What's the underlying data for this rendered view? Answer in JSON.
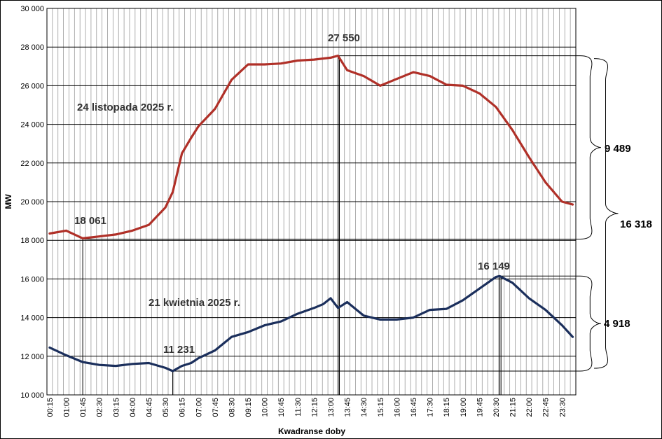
{
  "chart_data": {
    "type": "line",
    "title": "",
    "xlabel": "Kwadranse doby",
    "ylabel": "MW",
    "ylim": [
      10000,
      30000
    ],
    "yticks": [
      10000,
      12000,
      14000,
      16000,
      18000,
      20000,
      22000,
      24000,
      26000,
      28000,
      30000
    ],
    "ytick_labels": [
      "10 000",
      "12 000",
      "14 000",
      "16 000",
      "18 000",
      "20 000",
      "22 000",
      "24 000",
      "26 000",
      "28 000",
      "30 000"
    ],
    "xtick_labels": [
      "00:15",
      "01:00",
      "01:45",
      "02:30",
      "03:15",
      "04:00",
      "04:45",
      "05:30",
      "06:15",
      "07:00",
      "07:45",
      "08:30",
      "09:15",
      "10:00",
      "10:45",
      "11:30",
      "12:15",
      "13:00",
      "13:45",
      "14:30",
      "15:15",
      "16:00",
      "16:45",
      "17:30",
      "18:15",
      "19:00",
      "19:45",
      "20:30",
      "21:15",
      "22:00",
      "22:45",
      "23:30"
    ],
    "grid": true,
    "series": [
      {
        "name": "24 listopada 2025 r.",
        "color": "#b03028",
        "x": [
          "00:15",
          "01:00",
          "01:45",
          "02:30",
          "03:15",
          "04:00",
          "04:45",
          "05:30",
          "05:50",
          "06:15",
          "06:40",
          "07:00",
          "07:45",
          "08:30",
          "09:15",
          "10:00",
          "10:45",
          "11:30",
          "12:15",
          "13:00",
          "13:20",
          "13:45",
          "14:30",
          "15:15",
          "16:00",
          "16:45",
          "17:30",
          "18:15",
          "19:00",
          "19:45",
          "20:30",
          "21:15",
          "22:00",
          "22:45",
          "23:30",
          "23:59"
        ],
        "values": [
          18350,
          18500,
          18100,
          18200,
          18300,
          18500,
          18800,
          19700,
          20500,
          22500,
          23300,
          23900,
          24800,
          26300,
          27100,
          27100,
          27150,
          27300,
          27350,
          27450,
          27550,
          26800,
          26500,
          26000,
          26350,
          26700,
          26500,
          26050,
          26000,
          25600,
          24900,
          23700,
          22300,
          21000,
          20000,
          19850
        ]
      },
      {
        "name": "21 kwietnia 2025 r.",
        "color": "#1b2f5c",
        "x": [
          "00:15",
          "01:00",
          "01:45",
          "02:30",
          "03:15",
          "04:00",
          "04:45",
          "05:30",
          "05:50",
          "06:15",
          "06:40",
          "07:00",
          "07:45",
          "08:30",
          "09:15",
          "10:00",
          "10:45",
          "11:30",
          "12:15",
          "12:40",
          "13:00",
          "13:20",
          "13:45",
          "14:30",
          "15:15",
          "16:00",
          "16:45",
          "17:30",
          "18:15",
          "19:00",
          "19:45",
          "20:30",
          "20:40",
          "21:15",
          "22:00",
          "22:45",
          "23:30",
          "23:59"
        ],
        "values": [
          12450,
          12050,
          11700,
          11550,
          11500,
          11600,
          11650,
          11400,
          11231,
          11500,
          11650,
          11900,
          12300,
          13000,
          13250,
          13600,
          13800,
          14200,
          14500,
          14700,
          15000,
          14500,
          14800,
          14100,
          13900,
          13900,
          14000,
          14400,
          14450,
          14900,
          15500,
          16100,
          16149,
          15800,
          15000,
          14400,
          13600,
          13000
        ]
      }
    ],
    "annotations": {
      "max_autumn": "27 550",
      "min_autumn": "18 061",
      "max_spring": "16 149",
      "min_spring": "11 231",
      "range_autumn": "9 489",
      "range_total": "16 318",
      "range_spring": "4 918",
      "label_autumn": "24 listopada 2025 r.",
      "label_spring": "21 kwietnia 2025 r."
    }
  }
}
